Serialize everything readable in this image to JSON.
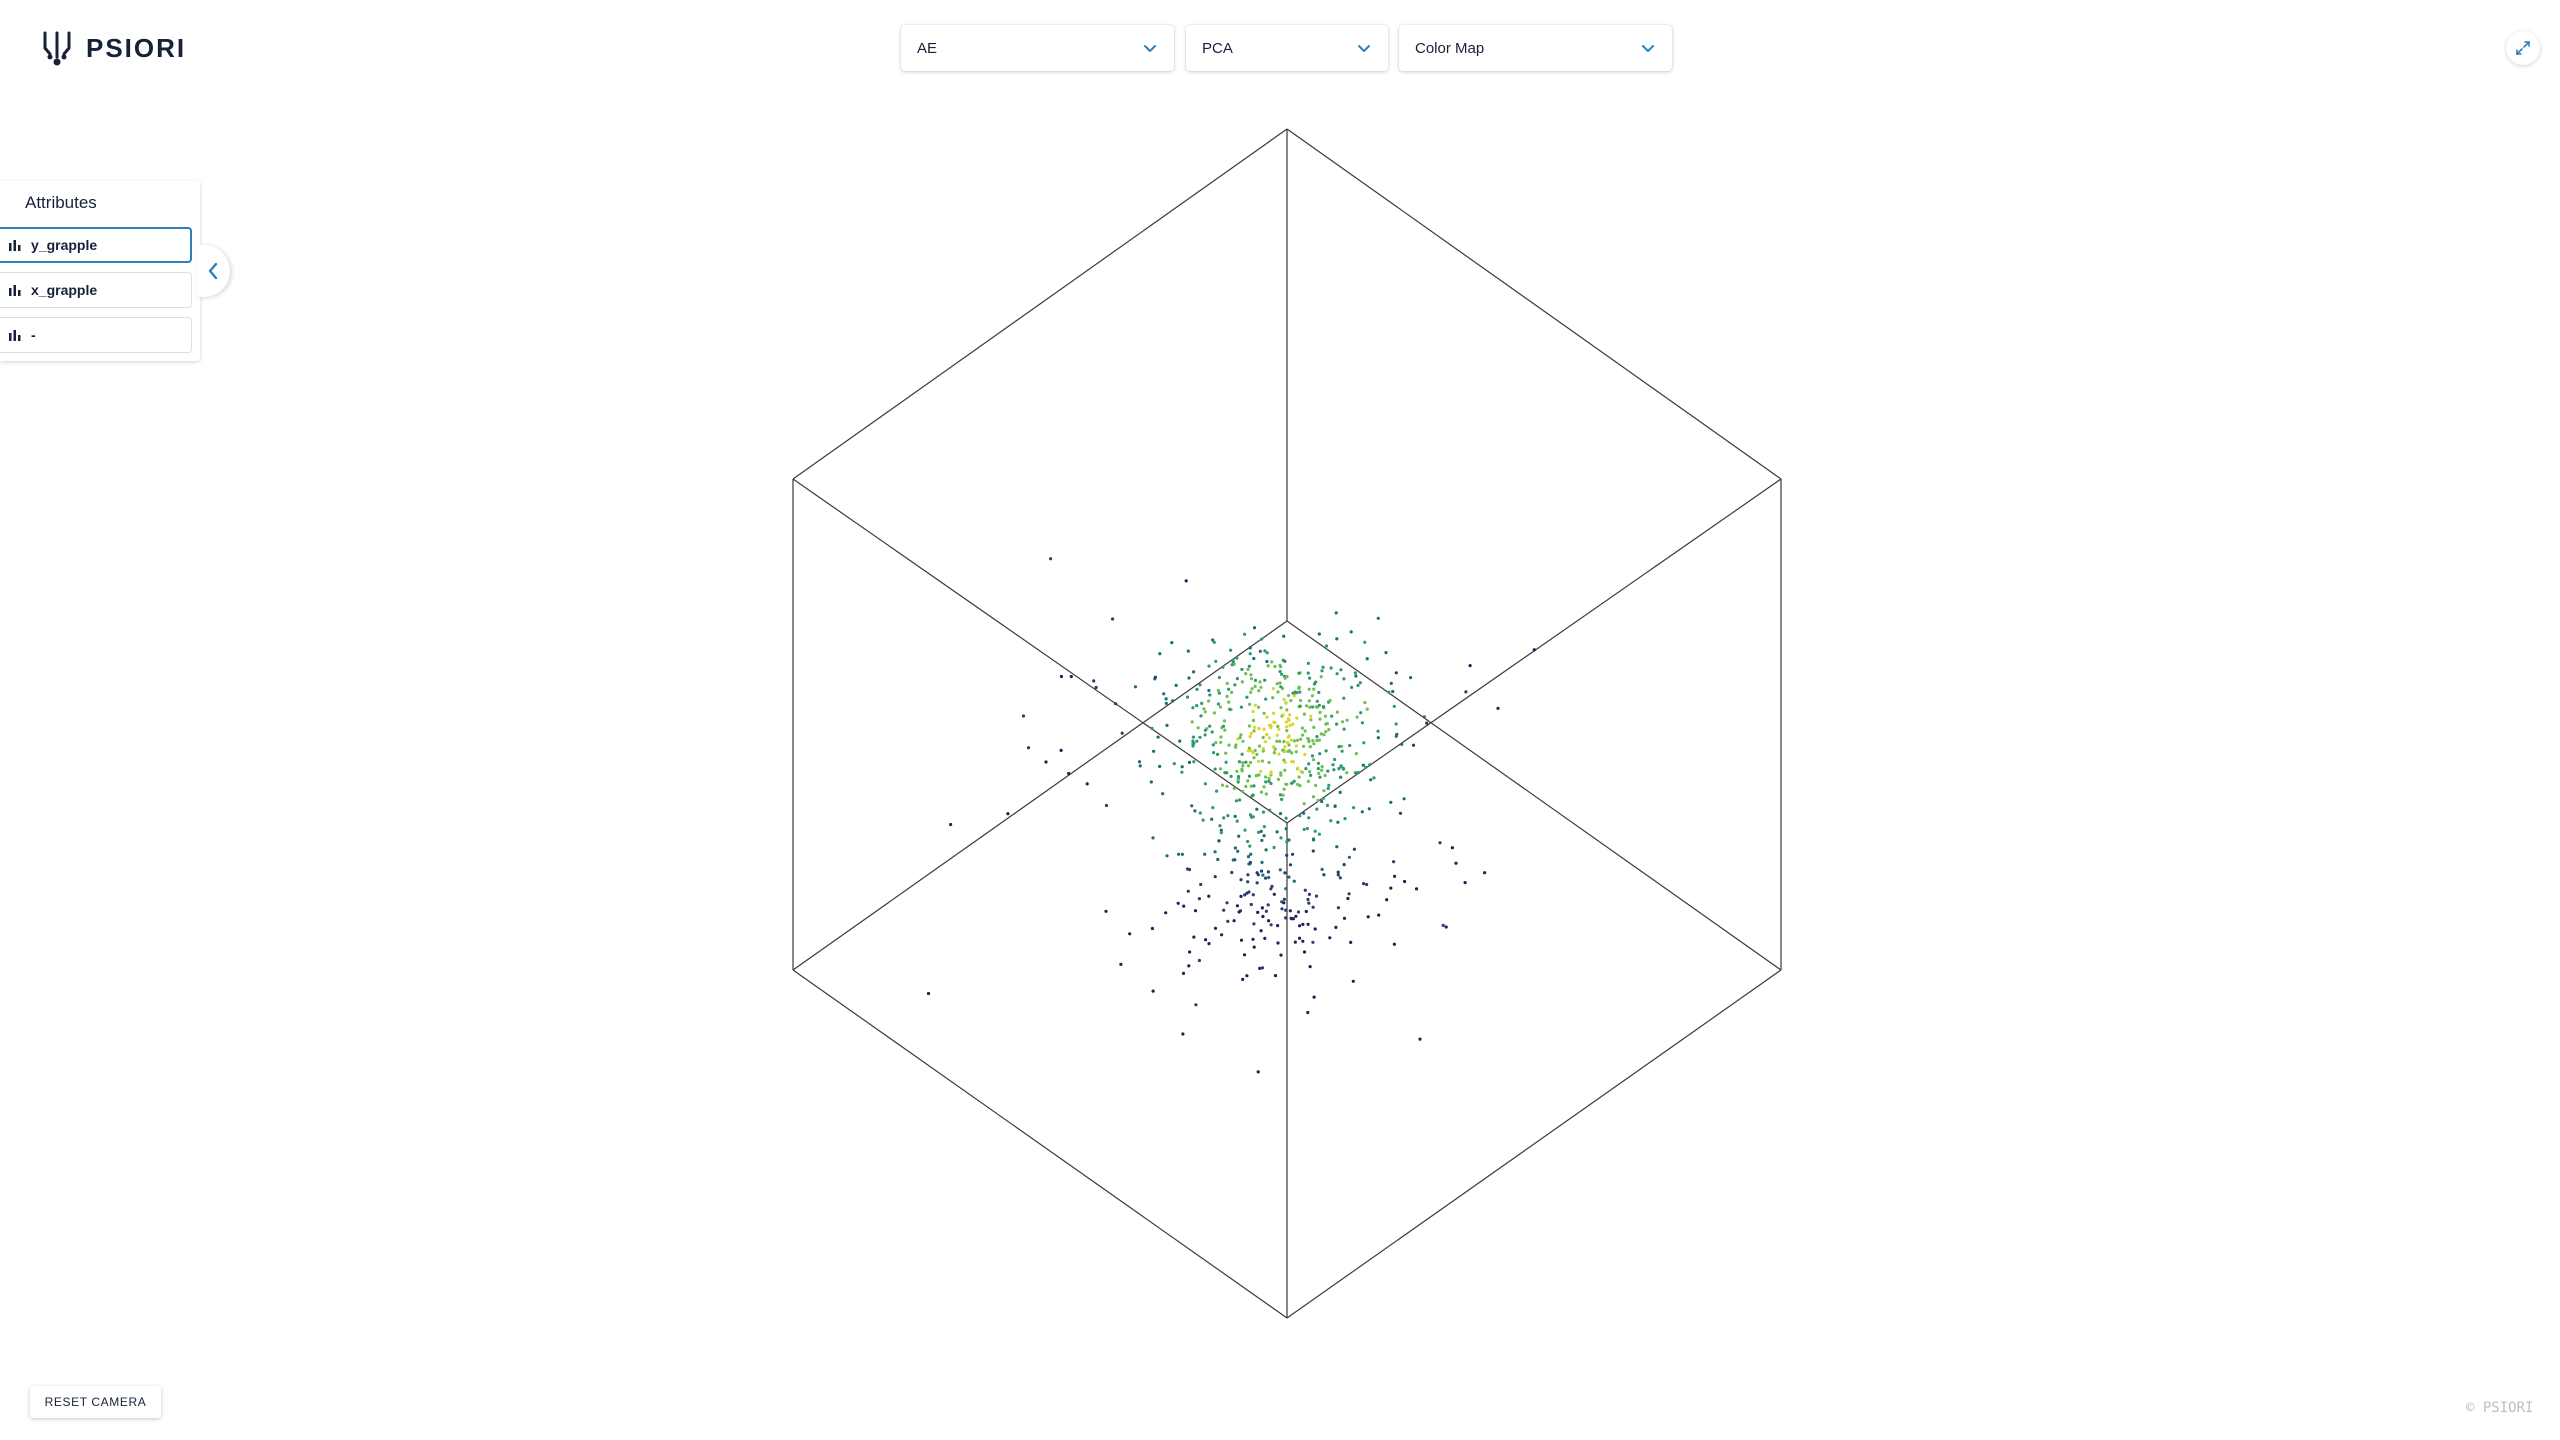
{
  "brand": {
    "name": "PSIORI"
  },
  "toolbar": {
    "model_select": {
      "value": "AE"
    },
    "reduction_select": {
      "value": "PCA"
    },
    "color_select": {
      "value": "Color Map"
    }
  },
  "attributes": {
    "title": "Attributes",
    "items": [
      {
        "label": "y_grapple",
        "active": true
      },
      {
        "label": "x_grapple",
        "active": false
      },
      {
        "label": "-",
        "active": false
      }
    ]
  },
  "buttons": {
    "reset_camera": "RESET CAMERA"
  },
  "footer": {
    "copyright": "© PSIORI"
  },
  "colors": {
    "accent": "#2c7fb8",
    "text": "#17213a",
    "point_colormap": [
      "#2b1b5a",
      "#26406b",
      "#1f6b78",
      "#2e9870",
      "#6cc050",
      "#d9d629"
    ]
  },
  "icons": {
    "dropdown": "chevron-down-icon",
    "expand": "expand-icon",
    "collapse": "chevron-left-icon",
    "attribute": "bar-chart-icon"
  }
}
